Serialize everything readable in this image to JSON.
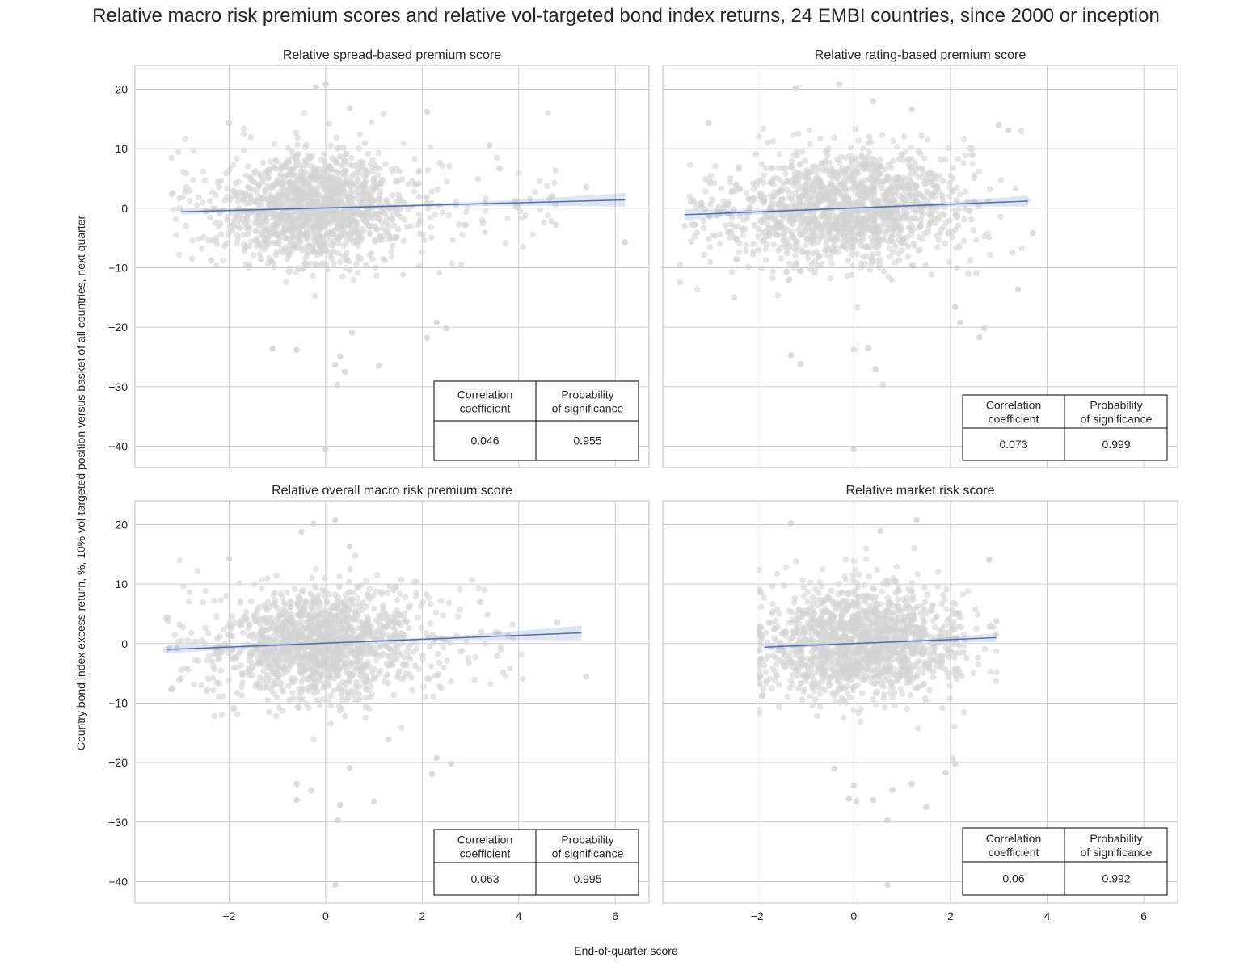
{
  "chart_data": {
    "type": "scatter",
    "title": "Relative macro risk premium scores and relative vol-targeted bond index returns, 24 EMBI countries, since 2000 or inception",
    "xlabel": "End-of-quarter score",
    "ylabel": "Country bond index excess return, %, 10% vol-targeted position versus basket of all countries, next quarter",
    "xlim": [
      -3.95,
      6.7
    ],
    "ylim": [
      -43.6,
      24
    ],
    "xticks": [
      -2,
      0,
      2,
      4,
      6
    ],
    "yticks": [
      -40,
      -30,
      -20,
      -10,
      0,
      10,
      20
    ],
    "xtick_labels": [
      "−2",
      "0",
      "2",
      "4",
      "6"
    ],
    "ytick_labels": [
      "−40",
      "−30",
      "−20",
      "−10",
      "0",
      "10",
      "20"
    ],
    "point_color": "#d3d3d3",
    "line_color": "#4c72b0",
    "table_headers": [
      "Correlation\ncoefficient",
      "Probability\nof significance"
    ],
    "panels": [
      {
        "title": "Relative spread-based premium score",
        "correlation": "0.046",
        "significance": "0.955",
        "regression": {
          "x": [
            -3.0,
            6.2
          ],
          "y": [
            -0.6,
            1.4
          ],
          "ci_end": 1.0
        },
        "cloud": {
          "n": 1500,
          "x_mean": -0.2,
          "x_sd": 0.9,
          "x_min": -3.2,
          "x_max": 6.2,
          "y_sd": 4.6,
          "seed": 11
        },
        "outliers": [
          [
            -0.2,
            20.3
          ],
          [
            0.0,
            20.8
          ],
          [
            0.5,
            16.8
          ],
          [
            2.1,
            16.2
          ],
          [
            -2.0,
            14.3
          ],
          [
            6.2,
            -5.7
          ],
          [
            5.4,
            3.6
          ],
          [
            0.2,
            -26.3
          ],
          [
            0.4,
            -27.5
          ],
          [
            0.3,
            -24.9
          ],
          [
            0.0,
            -40.5
          ],
          [
            0.25,
            -29.7
          ],
          [
            -1.1,
            -23.6
          ],
          [
            -0.6,
            -23.8
          ],
          [
            2.1,
            -21.8
          ],
          [
            2.5,
            -20.2
          ],
          [
            2.3,
            -19.2
          ],
          [
            1.1,
            -26.5
          ],
          [
            0.55,
            -20.9
          ],
          [
            3.4,
            10.6
          ],
          [
            3.6,
            6.7
          ],
          [
            4.7,
            2.0
          ]
        ]
      },
      {
        "title": "Relative rating-based premium score",
        "correlation": "0.073",
        "significance": "0.999",
        "regression": {
          "x": [
            -3.5,
            3.6
          ],
          "y": [
            -1.1,
            1.2
          ],
          "ci_end": 0.8
        },
        "cloud": {
          "n": 1500,
          "x_mean": -0.1,
          "x_sd": 1.1,
          "x_min": -3.6,
          "x_max": 3.7,
          "y_sd": 4.6,
          "seed": 23
        },
        "outliers": [
          [
            -1.2,
            20.2
          ],
          [
            -0.3,
            20.8
          ],
          [
            0.4,
            18.0
          ],
          [
            1.2,
            16.6
          ],
          [
            -3.0,
            14.3
          ],
          [
            3.7,
            -4.2
          ],
          [
            0.0,
            -40.5
          ],
          [
            0.0,
            -23.8
          ],
          [
            0.3,
            -23.5
          ],
          [
            0.6,
            -29.7
          ],
          [
            0.45,
            -27.1
          ],
          [
            -1.3,
            -24.7
          ],
          [
            -1.1,
            -26.2
          ],
          [
            2.2,
            -19.2
          ],
          [
            2.6,
            -21.7
          ],
          [
            2.7,
            -20.2
          ],
          [
            3.4,
            -13.6
          ],
          [
            2.1,
            -16.6
          ],
          [
            3.2,
            13.1
          ],
          [
            3.0,
            14.0
          ]
        ]
      },
      {
        "title": "Relative overall macro risk premium score",
        "correlation": "0.063",
        "significance": "0.995",
        "regression": {
          "x": [
            -3.3,
            5.3
          ],
          "y": [
            -1.0,
            1.8
          ],
          "ci_end": 1.1
        },
        "cloud": {
          "n": 1500,
          "x_mean": -0.1,
          "x_sd": 1.0,
          "x_min": -3.3,
          "x_max": 5.4,
          "y_sd": 4.6,
          "seed": 37
        },
        "outliers": [
          [
            0.2,
            20.8
          ],
          [
            -0.25,
            20.1
          ],
          [
            -0.5,
            18.8
          ],
          [
            0.5,
            16.3
          ],
          [
            -2.0,
            14.3
          ],
          [
            5.4,
            -5.6
          ],
          [
            4.8,
            3.6
          ],
          [
            0.2,
            -40.5
          ],
          [
            0.25,
            -29.7
          ],
          [
            0.3,
            -27.1
          ],
          [
            -0.6,
            -26.3
          ],
          [
            -0.3,
            -24.7
          ],
          [
            -0.6,
            -23.6
          ],
          [
            0.5,
            -20.9
          ],
          [
            1.3,
            -16.1
          ],
          [
            2.2,
            -21.9
          ],
          [
            2.6,
            -20.2
          ],
          [
            2.3,
            -19.2
          ],
          [
            1.0,
            -26.5
          ],
          [
            3.2,
            7.0
          ],
          [
            -3.3,
            4.3
          ],
          [
            -3.2,
            -7.7
          ]
        ]
      },
      {
        "title": "Relative market risk score",
        "correlation": "0.06",
        "significance": "0.992",
        "regression": {
          "x": [
            -1.85,
            2.95
          ],
          "y": [
            -0.6,
            1.0
          ],
          "ci_end": 0.6
        },
        "cloud": {
          "n": 1500,
          "x_mean": 0.2,
          "x_sd": 1.0,
          "x_min": -1.95,
          "x_max": 2.95,
          "y_sd": 4.6,
          "seed": 51
        },
        "outliers": [
          [
            -1.3,
            20.2
          ],
          [
            1.3,
            20.8
          ],
          [
            0.55,
            18.9
          ],
          [
            0.0,
            -23.8
          ],
          [
            0.7,
            -29.7
          ],
          [
            0.4,
            -26.3
          ],
          [
            0.05,
            -26.5
          ],
          [
            -0.1,
            -26.1
          ],
          [
            0.7,
            -40.5
          ],
          [
            1.5,
            -27.5
          ],
          [
            1.2,
            -23.6
          ],
          [
            2.1,
            -20.2
          ],
          [
            2.05,
            -19.3
          ],
          [
            1.9,
            -21.7
          ],
          [
            -0.4,
            -21.0
          ],
          [
            0.8,
            -24.6
          ],
          [
            2.8,
            14.1
          ],
          [
            -1.9,
            -8.8
          ],
          [
            2.95,
            3.8
          ]
        ]
      }
    ]
  }
}
